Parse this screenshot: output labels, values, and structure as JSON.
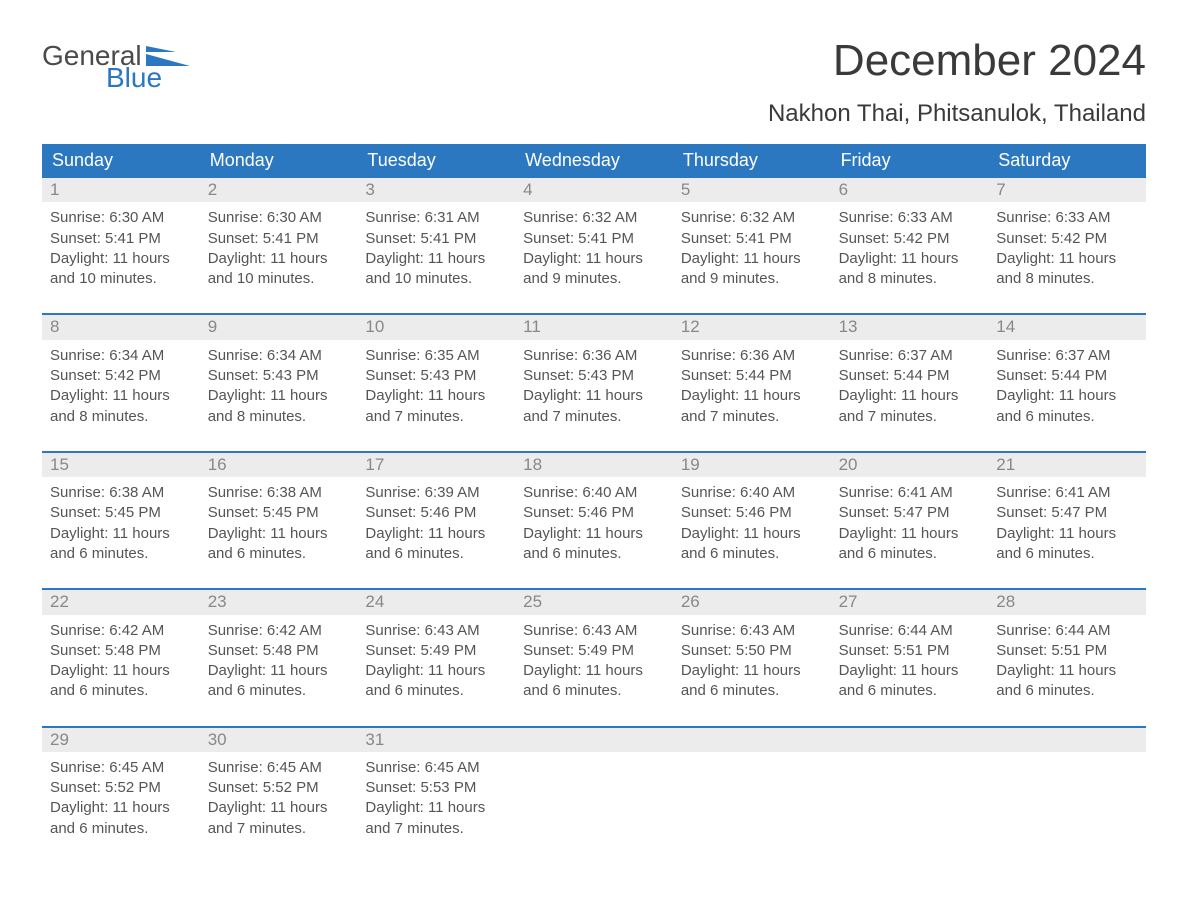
{
  "logo": {
    "text_top": "General",
    "text_bottom": "Blue",
    "flag_color": "#2b77c0",
    "text_color_gray": "#4a4a4a"
  },
  "title": "December 2024",
  "location": "Nakhon Thai, Phitsanulok, Thailand",
  "colors": {
    "header_bg": "#2b77c0",
    "header_text": "#ffffff",
    "daynum_bg": "#ececec",
    "daynum_text": "#888888",
    "body_text": "#555555",
    "page_bg": "#ffffff",
    "week_divider": "#2b77c0"
  },
  "typography": {
    "title_fontsize": 44,
    "location_fontsize": 24,
    "dayheader_fontsize": 18,
    "daynum_fontsize": 17,
    "cell_fontsize": 15,
    "font_family": "Arial"
  },
  "day_names": [
    "Sunday",
    "Monday",
    "Tuesday",
    "Wednesday",
    "Thursday",
    "Friday",
    "Saturday"
  ],
  "weeks": [
    [
      {
        "num": "1",
        "sunrise": "Sunrise: 6:30 AM",
        "sunset": "Sunset: 5:41 PM",
        "daylight": "Daylight: 11 hours and 10 minutes."
      },
      {
        "num": "2",
        "sunrise": "Sunrise: 6:30 AM",
        "sunset": "Sunset: 5:41 PM",
        "daylight": "Daylight: 11 hours and 10 minutes."
      },
      {
        "num": "3",
        "sunrise": "Sunrise: 6:31 AM",
        "sunset": "Sunset: 5:41 PM",
        "daylight": "Daylight: 11 hours and 10 minutes."
      },
      {
        "num": "4",
        "sunrise": "Sunrise: 6:32 AM",
        "sunset": "Sunset: 5:41 PM",
        "daylight": "Daylight: 11 hours and 9 minutes."
      },
      {
        "num": "5",
        "sunrise": "Sunrise: 6:32 AM",
        "sunset": "Sunset: 5:41 PM",
        "daylight": "Daylight: 11 hours and 9 minutes."
      },
      {
        "num": "6",
        "sunrise": "Sunrise: 6:33 AM",
        "sunset": "Sunset: 5:42 PM",
        "daylight": "Daylight: 11 hours and 8 minutes."
      },
      {
        "num": "7",
        "sunrise": "Sunrise: 6:33 AM",
        "sunset": "Sunset: 5:42 PM",
        "daylight": "Daylight: 11 hours and 8 minutes."
      }
    ],
    [
      {
        "num": "8",
        "sunrise": "Sunrise: 6:34 AM",
        "sunset": "Sunset: 5:42 PM",
        "daylight": "Daylight: 11 hours and 8 minutes."
      },
      {
        "num": "9",
        "sunrise": "Sunrise: 6:34 AM",
        "sunset": "Sunset: 5:43 PM",
        "daylight": "Daylight: 11 hours and 8 minutes."
      },
      {
        "num": "10",
        "sunrise": "Sunrise: 6:35 AM",
        "sunset": "Sunset: 5:43 PM",
        "daylight": "Daylight: 11 hours and 7 minutes."
      },
      {
        "num": "11",
        "sunrise": "Sunrise: 6:36 AM",
        "sunset": "Sunset: 5:43 PM",
        "daylight": "Daylight: 11 hours and 7 minutes."
      },
      {
        "num": "12",
        "sunrise": "Sunrise: 6:36 AM",
        "sunset": "Sunset: 5:44 PM",
        "daylight": "Daylight: 11 hours and 7 minutes."
      },
      {
        "num": "13",
        "sunrise": "Sunrise: 6:37 AM",
        "sunset": "Sunset: 5:44 PM",
        "daylight": "Daylight: 11 hours and 7 minutes."
      },
      {
        "num": "14",
        "sunrise": "Sunrise: 6:37 AM",
        "sunset": "Sunset: 5:44 PM",
        "daylight": "Daylight: 11 hours and 6 minutes."
      }
    ],
    [
      {
        "num": "15",
        "sunrise": "Sunrise: 6:38 AM",
        "sunset": "Sunset: 5:45 PM",
        "daylight": "Daylight: 11 hours and 6 minutes."
      },
      {
        "num": "16",
        "sunrise": "Sunrise: 6:38 AM",
        "sunset": "Sunset: 5:45 PM",
        "daylight": "Daylight: 11 hours and 6 minutes."
      },
      {
        "num": "17",
        "sunrise": "Sunrise: 6:39 AM",
        "sunset": "Sunset: 5:46 PM",
        "daylight": "Daylight: 11 hours and 6 minutes."
      },
      {
        "num": "18",
        "sunrise": "Sunrise: 6:40 AM",
        "sunset": "Sunset: 5:46 PM",
        "daylight": "Daylight: 11 hours and 6 minutes."
      },
      {
        "num": "19",
        "sunrise": "Sunrise: 6:40 AM",
        "sunset": "Sunset: 5:46 PM",
        "daylight": "Daylight: 11 hours and 6 minutes."
      },
      {
        "num": "20",
        "sunrise": "Sunrise: 6:41 AM",
        "sunset": "Sunset: 5:47 PM",
        "daylight": "Daylight: 11 hours and 6 minutes."
      },
      {
        "num": "21",
        "sunrise": "Sunrise: 6:41 AM",
        "sunset": "Sunset: 5:47 PM",
        "daylight": "Daylight: 11 hours and 6 minutes."
      }
    ],
    [
      {
        "num": "22",
        "sunrise": "Sunrise: 6:42 AM",
        "sunset": "Sunset: 5:48 PM",
        "daylight": "Daylight: 11 hours and 6 minutes."
      },
      {
        "num": "23",
        "sunrise": "Sunrise: 6:42 AM",
        "sunset": "Sunset: 5:48 PM",
        "daylight": "Daylight: 11 hours and 6 minutes."
      },
      {
        "num": "24",
        "sunrise": "Sunrise: 6:43 AM",
        "sunset": "Sunset: 5:49 PM",
        "daylight": "Daylight: 11 hours and 6 minutes."
      },
      {
        "num": "25",
        "sunrise": "Sunrise: 6:43 AM",
        "sunset": "Sunset: 5:49 PM",
        "daylight": "Daylight: 11 hours and 6 minutes."
      },
      {
        "num": "26",
        "sunrise": "Sunrise: 6:43 AM",
        "sunset": "Sunset: 5:50 PM",
        "daylight": "Daylight: 11 hours and 6 minutes."
      },
      {
        "num": "27",
        "sunrise": "Sunrise: 6:44 AM",
        "sunset": "Sunset: 5:51 PM",
        "daylight": "Daylight: 11 hours and 6 minutes."
      },
      {
        "num": "28",
        "sunrise": "Sunrise: 6:44 AM",
        "sunset": "Sunset: 5:51 PM",
        "daylight": "Daylight: 11 hours and 6 minutes."
      }
    ],
    [
      {
        "num": "29",
        "sunrise": "Sunrise: 6:45 AM",
        "sunset": "Sunset: 5:52 PM",
        "daylight": "Daylight: 11 hours and 6 minutes."
      },
      {
        "num": "30",
        "sunrise": "Sunrise: 6:45 AM",
        "sunset": "Sunset: 5:52 PM",
        "daylight": "Daylight: 11 hours and 7 minutes."
      },
      {
        "num": "31",
        "sunrise": "Sunrise: 6:45 AM",
        "sunset": "Sunset: 5:53 PM",
        "daylight": "Daylight: 11 hours and 7 minutes."
      },
      null,
      null,
      null,
      null
    ]
  ]
}
